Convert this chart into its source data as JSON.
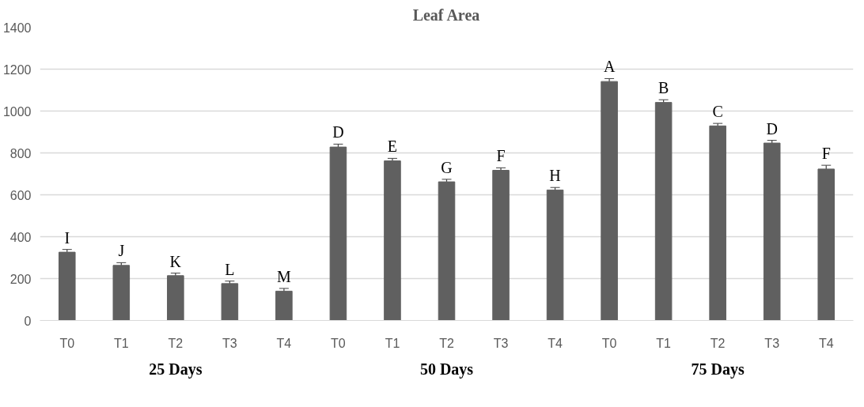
{
  "chart_data": {
    "type": "bar",
    "title": "Leaf Area",
    "categories": [
      "T0",
      "T1",
      "T2",
      "T3",
      "T4",
      "T0",
      "T1",
      "T2",
      "T3",
      "T4",
      "T0",
      "T1",
      "T2",
      "T3",
      "T4"
    ],
    "values": [
      326,
      263,
      214,
      176,
      140,
      828,
      762,
      662,
      717,
      623,
      1141,
      1041,
      929,
      847,
      723
    ],
    "errors": [
      13,
      13,
      12,
      12,
      13,
      14,
      12,
      12,
      12,
      12,
      14,
      13,
      12,
      13,
      18
    ],
    "value_labels": [
      "I",
      "J",
      "K",
      "L",
      "M",
      "D",
      "E",
      "G",
      "F",
      "H",
      "A",
      "B",
      "C",
      "D",
      "F"
    ],
    "color": "#606060",
    "ylim": [
      0,
      1400
    ],
    "yticks": [
      0,
      200,
      400,
      600,
      800,
      1000,
      1200,
      1400
    ],
    "grid": "y",
    "annotations": [
      "25 Days",
      "50 Days",
      "75 Days"
    ]
  }
}
